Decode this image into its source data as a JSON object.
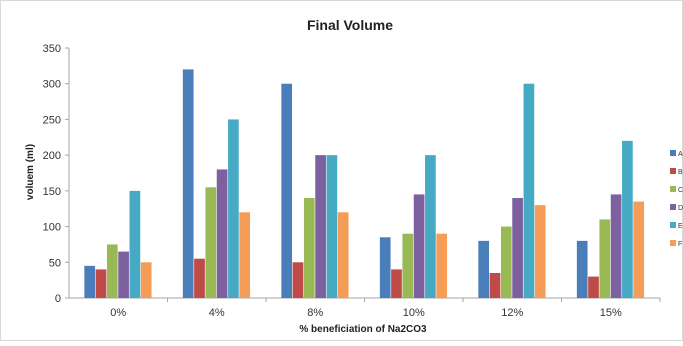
{
  "chart_data": {
    "type": "bar",
    "title": "Final Volume",
    "xlabel": "% beneficiation of Na2CO3",
    "ylabel": "voluem (ml)",
    "categories": [
      "0%",
      "4%",
      "8%",
      "10%",
      "12%",
      "15%"
    ],
    "ylim": [
      0,
      350
    ],
    "yticks": [
      0,
      50,
      100,
      150,
      200,
      250,
      300,
      350
    ],
    "grid": false,
    "legend_position": "right",
    "series": [
      {
        "name": "A",
        "color": "#4a7ebb",
        "values": [
          45,
          320,
          300,
          85,
          80,
          80
        ]
      },
      {
        "name": "B",
        "color": "#be4b48",
        "values": [
          40,
          55,
          50,
          40,
          35,
          30
        ]
      },
      {
        "name": "C",
        "color": "#98b954",
        "values": [
          75,
          155,
          140,
          90,
          100,
          110
        ]
      },
      {
        "name": "D",
        "color": "#7d60a0",
        "values": [
          65,
          180,
          200,
          145,
          140,
          145
        ]
      },
      {
        "name": "E",
        "color": "#46aac5",
        "values": [
          150,
          250,
          200,
          200,
          300,
          220
        ]
      },
      {
        "name": "F",
        "color": "#f59d56",
        "values": [
          50,
          120,
          120,
          90,
          130,
          135
        ]
      }
    ]
  }
}
